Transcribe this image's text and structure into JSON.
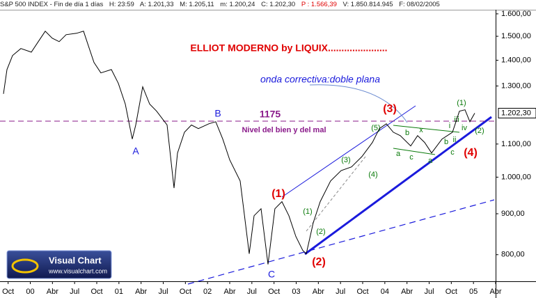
{
  "header": [
    "S&P 500 INDEX - Fin de día 1 días",
    "H: 23:59",
    "A: 1.201,33",
    "M: 1.205,11",
    "m: 1.200,24",
    "C: 1.202,30",
    "P : 1.566,39",
    "V: 1.850.814.945",
    "F: 08/02/2005"
  ],
  "logo": {
    "name": "Visual Chart",
    "url": "www.visualchart.com"
  },
  "chart_data": {
    "type": "line",
    "title": "ELLIOT MODERNO by LIQUIX......................",
    "subtitle": "onda correctiva:doble plana",
    "color": "#000000",
    "log_scale": true,
    "x": [
      -0.63,
      -0.16,
      0.6,
      1.73,
      3.14,
      4.08,
      5.03,
      5.97,
      6.91,
      7.85,
      9.27,
      10.21,
      10.68,
      11.62,
      12.56,
      13.98,
      14.92,
      15.86,
      16.81,
      17.28,
      18.22,
      19.16,
      20.1,
      21.52,
      22.46,
      22.93,
      23.87,
      24.82,
      25.76,
      27.17,
      28.11,
      29.06,
      30.0,
      31.41,
      31.88,
      32.64,
      33.3,
      34.24,
      35.18,
      36.12,
      37.07,
      38.01,
      38.95,
      39.89,
      40.37,
      41.31,
      42.25,
      43.66,
      45.08,
      46.49,
      47.9,
      49.32,
      50.26,
      51.2,
      52.15,
      53.09,
      54.5,
      55.44,
      56.39,
      57.33,
      58.74,
      60.16,
      61.1,
      61.85,
      62.51,
      63.17
    ],
    "values": [
      1271,
      1363,
      1419,
      1448,
      1433,
      1477,
      1522,
      1492,
      1477,
      1507,
      1513,
      1522,
      1477,
      1391,
      1350,
      1363,
      1310,
      1234,
      1116,
      1162,
      1297,
      1234,
      1209,
      1162,
      969,
      1072,
      1138,
      1162,
      1150,
      1166,
      1173,
      1116,
      1051,
      989,
      913,
      802,
      895,
      913,
      778,
      913,
      932,
      895,
      843,
      810,
      802,
      877,
      932,
      989,
      1019,
      1030,
      1061,
      1105,
      1150,
      1166,
      1138,
      1127,
      1094,
      1127,
      1105,
      1072,
      1116,
      1138,
      1209,
      1214,
      1173,
      1202.3
    ],
    "last_label": "1.202,30",
    "xlim": [
      -1.1,
      66
    ],
    "xticks": [
      {
        "value": 0,
        "label": "Oct"
      },
      {
        "value": 3,
        "label": "00"
      },
      {
        "value": 6,
        "label": "Abr"
      },
      {
        "value": 9,
        "label": "Jul"
      },
      {
        "value": 12,
        "label": "Oct"
      },
      {
        "value": 15,
        "label": "01"
      },
      {
        "value": 18,
        "label": "Abr"
      },
      {
        "value": 21,
        "label": "Jul"
      },
      {
        "value": 24,
        "label": "Oct"
      },
      {
        "value": 27,
        "label": "02"
      },
      {
        "value": 30,
        "label": "Abr"
      },
      {
        "value": 33,
        "label": "Jul"
      },
      {
        "value": 36,
        "label": "Oct"
      },
      {
        "value": 39,
        "label": "03"
      },
      {
        "value": 42,
        "label": "Abr"
      },
      {
        "value": 45,
        "label": "Jul"
      },
      {
        "value": 48,
        "label": "Oct"
      },
      {
        "value": 51,
        "label": "04"
      },
      {
        "value": 54,
        "label": "Abr"
      },
      {
        "value": 57,
        "label": "Jul"
      },
      {
        "value": 60,
        "label": "Oct"
      },
      {
        "value": 63,
        "label": "05"
      },
      {
        "value": 66,
        "label": "Abr"
      }
    ],
    "ylim": [
      741,
      1619
    ],
    "yticks": [
      {
        "value": 800,
        "label": "800,00"
      },
      {
        "value": 900,
        "label": "900,00"
      },
      {
        "value": 1000,
        "label": "1.000,00"
      },
      {
        "value": 1100,
        "label": "1.100,00"
      },
      {
        "value": 1300,
        "label": "1.300,00"
      },
      {
        "value": 1400,
        "label": "1.400,00"
      },
      {
        "value": 1500,
        "label": "1.500,00"
      },
      {
        "value": 1600,
        "label": "1.600,00"
      }
    ],
    "reference": {
      "value": 1175,
      "label": "1175",
      "sublabel": "Nivel del bien y del mal"
    },
    "annotations": [
      "A",
      "B",
      "C",
      "(1)",
      "(2)",
      "(3)",
      "(4)",
      "(1)",
      "(2)",
      "(3)",
      "(4)",
      "(5)",
      "a",
      "b",
      "c",
      "x",
      "a",
      "b",
      "c",
      "i",
      "ii",
      "iii",
      "iv",
      "(1)",
      "(2)"
    ]
  }
}
